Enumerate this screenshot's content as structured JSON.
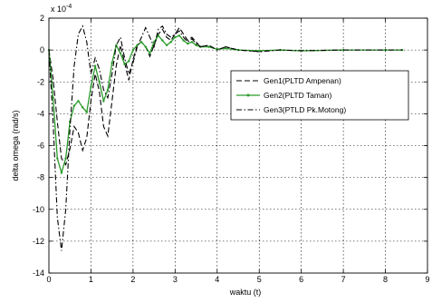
{
  "chart_data": {
    "type": "line",
    "xlabel": "waktu (t)",
    "ylabel": "delta omega (rad/s)",
    "y_exponent": "x 10",
    "y_exponent_power": "-4",
    "xlim": [
      0,
      9
    ],
    "ylim": [
      -14,
      2
    ],
    "xticks": [
      "0",
      "1",
      "2",
      "3",
      "4",
      "5",
      "6",
      "7",
      "8",
      "9"
    ],
    "yticks": [
      "2",
      "0",
      "-2",
      "-4",
      "-6",
      "-8",
      "-10",
      "-12",
      "-14"
    ],
    "grid": true,
    "legend_position": "center-right",
    "series": [
      {
        "name": "Gen1(PLTD Ampenan)",
        "color": "#000000",
        "style": "dashed",
        "marker": "none",
        "x": [
          0,
          0.1,
          0.2,
          0.3,
          0.4,
          0.5,
          0.6,
          0.7,
          0.8,
          0.9,
          1.0,
          1.1,
          1.2,
          1.3,
          1.4,
          1.5,
          1.6,
          1.7,
          1.8,
          1.9,
          2.0,
          2.1,
          2.2,
          2.3,
          2.4,
          2.5,
          2.6,
          2.7,
          2.8,
          2.9,
          3.0,
          3.1,
          3.2,
          3.3,
          3.4,
          3.5,
          3.6,
          3.8,
          4.0,
          4.2,
          4.5,
          5.0,
          5.5,
          6.0,
          7.0,
          8.0,
          8.4
        ],
        "y": [
          0,
          -1.8,
          -4.5,
          -6.8,
          -7.2,
          -6.2,
          -4.8,
          -5.2,
          -6.3,
          -5.5,
          -3.2,
          -1.5,
          -2.6,
          -4.8,
          -5.4,
          -3.2,
          -1.0,
          0.3,
          -0.8,
          -1.9,
          -0.6,
          0.3,
          0.5,
          0.2,
          -0.4,
          0.3,
          1.0,
          1.3,
          0.8,
          0.6,
          1.0,
          1.4,
          1.0,
          0.6,
          0.8,
          0.5,
          0.2,
          0.3,
          0.0,
          0.2,
          0.0,
          -0.1,
          0.0,
          -0.05,
          0.0,
          0.0,
          0.0
        ]
      },
      {
        "name": "Gen2(PLTD Taman)",
        "color": "#2a9a2a",
        "style": "solid",
        "marker": "dot",
        "x": [
          0,
          0.1,
          0.2,
          0.3,
          0.4,
          0.5,
          0.6,
          0.7,
          0.8,
          0.9,
          1.0,
          1.1,
          1.2,
          1.3,
          1.4,
          1.5,
          1.6,
          1.7,
          1.8,
          1.9,
          2.0,
          2.1,
          2.2,
          2.3,
          2.4,
          2.5,
          2.6,
          2.7,
          2.8,
          2.9,
          3.0,
          3.1,
          3.2,
          3.3,
          3.4,
          3.5,
          3.6,
          3.8,
          4.0,
          4.2,
          4.5,
          5.0,
          5.5,
          6.0,
          7.0,
          8.0,
          8.4
        ],
        "y": [
          0,
          -3.0,
          -6.8,
          -7.7,
          -6.8,
          -4.5,
          -3.5,
          -3.2,
          -3.6,
          -3.9,
          -2.3,
          -1.0,
          -2.0,
          -3.2,
          -2.5,
          -0.8,
          0.3,
          -0.2,
          -0.9,
          -0.7,
          0.0,
          0.3,
          0.5,
          0.2,
          -0.2,
          0.5,
          0.9,
          0.6,
          0.3,
          0.5,
          0.8,
          0.9,
          0.6,
          0.4,
          0.5,
          0.3,
          0.2,
          0.2,
          0.05,
          0.1,
          0.0,
          -0.05,
          0.0,
          -0.05,
          0.0,
          0.0,
          0.0
        ]
      },
      {
        "name": "Gen3(PTLD Pk.Motong)",
        "color": "#000000",
        "style": "dashdot",
        "marker": "none",
        "x": [
          0,
          0.1,
          0.2,
          0.3,
          0.4,
          0.5,
          0.6,
          0.7,
          0.8,
          0.9,
          1.0,
          1.1,
          1.2,
          1.3,
          1.4,
          1.5,
          1.6,
          1.7,
          1.8,
          1.9,
          2.0,
          2.1,
          2.2,
          2.3,
          2.4,
          2.5,
          2.6,
          2.7,
          2.8,
          2.9,
          3.0,
          3.1,
          3.2,
          3.3,
          3.4,
          3.5,
          3.6,
          3.8,
          4.0,
          4.2,
          4.5,
          5.0,
          5.5,
          6.0,
          7.0,
          8.0,
          8.4
        ],
        "y": [
          0,
          -4.5,
          -10.5,
          -12.6,
          -10.0,
          -5.0,
          -1.0,
          1.0,
          1.5,
          0.5,
          -1.5,
          -0.5,
          -1.2,
          -2.5,
          -3.0,
          -1.5,
          0.3,
          0.8,
          -0.5,
          -1.5,
          -0.8,
          0.2,
          0.8,
          1.4,
          0.8,
          0.2,
          1.3,
          1.5,
          1.0,
          0.8,
          1.0,
          1.2,
          0.8,
          0.5,
          0.7,
          0.4,
          0.2,
          0.3,
          0.0,
          0.2,
          0.0,
          -0.1,
          0.0,
          -0.05,
          0.0,
          0.0,
          0.0
        ]
      }
    ]
  }
}
